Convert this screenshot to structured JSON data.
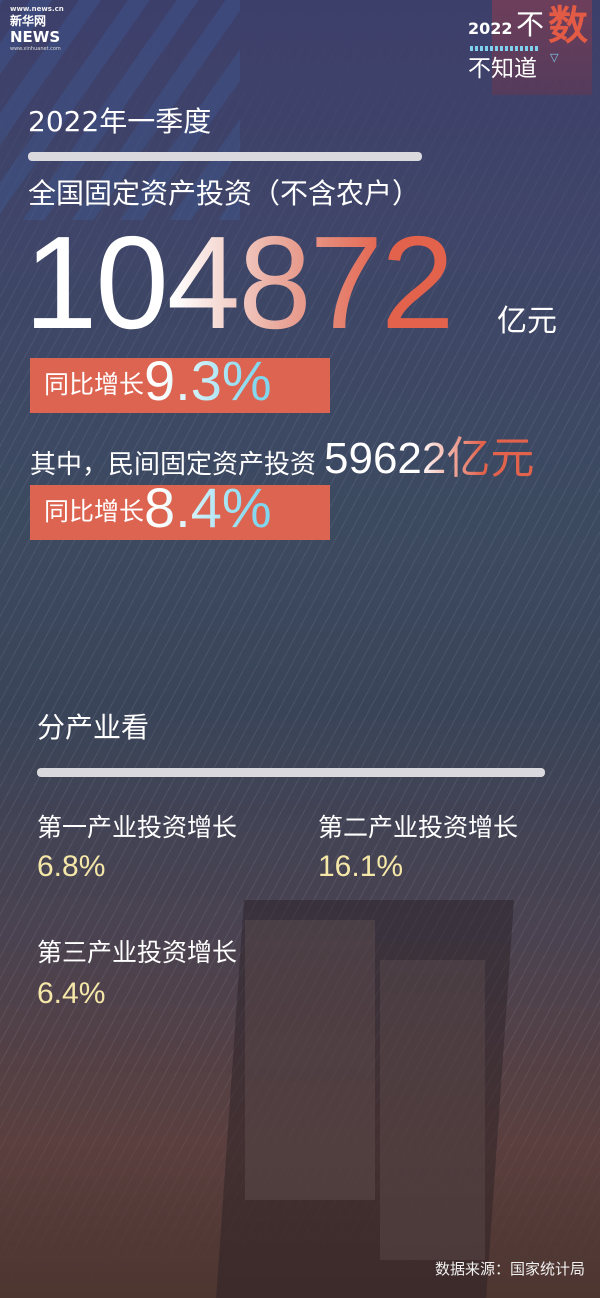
{
  "logo": {
    "url_top": "www.news.cn",
    "brand_cn": "新华网",
    "brand_en": "NEWS",
    "url_bottom": "www.xinhuanet.com"
  },
  "badge": {
    "year": "2022",
    "bu": "不",
    "shu": "数",
    "zhidao": "不知道",
    "triangle": "▽"
  },
  "period": "2022年一季度",
  "headline": "全国固定资产投资（不含农户）",
  "total": {
    "value": "104872",
    "unit": "亿元",
    "growth_label": "同比增长",
    "growth": "9.3%"
  },
  "private": {
    "label": "其中，民间固定资产投资",
    "value": "59622亿元",
    "growth_label": "同比增长",
    "growth": "8.4%"
  },
  "section_title": "分产业看",
  "industries": [
    {
      "label": "第一产业投资增长",
      "value": "6.8%"
    },
    {
      "label": "第二产业投资增长",
      "value": "16.1%"
    },
    {
      "label": "第三产业投资增长",
      "value": "6.4%"
    }
  ],
  "source": "数据来源：国家统计局",
  "colors": {
    "accent_red": "#dc6451",
    "accent_cyan": "#7fd6ee",
    "value_yellow": "#f5e7a8"
  }
}
